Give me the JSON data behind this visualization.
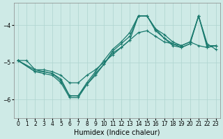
{
  "xlabel": "Humidex (Indice chaleur)",
  "xlim": [
    -0.5,
    23.5
  ],
  "ylim": [
    -6.5,
    -3.4
  ],
  "yticks": [
    -6,
    -5,
    -4
  ],
  "xticks": [
    0,
    1,
    2,
    3,
    4,
    5,
    6,
    7,
    8,
    9,
    10,
    11,
    12,
    13,
    14,
    15,
    16,
    17,
    18,
    19,
    20,
    21,
    22,
    23
  ],
  "bg_color": "#ceeae6",
  "line_color": "#1a7a6e",
  "grid_color": "#aed4ce",
  "series": [
    {
      "x": [
        0,
        1,
        2,
        3,
        4,
        5,
        6,
        7,
        8,
        9,
        10,
        11,
        12,
        13,
        14,
        15,
        16,
        17,
        18,
        19,
        20,
        21,
        22,
        23
      ],
      "y": [
        -4.95,
        -4.95,
        -5.2,
        -5.2,
        -5.25,
        -5.35,
        -5.55,
        -5.55,
        -5.35,
        -5.2,
        -5.0,
        -4.8,
        -4.6,
        -4.4,
        -4.2,
        -4.15,
        -4.3,
        -4.45,
        -4.5,
        -4.55,
        -4.45,
        -4.55,
        -4.6,
        -4.55
      ]
    },
    {
      "x": [
        0,
        2,
        3,
        4,
        5,
        6,
        7,
        8,
        9,
        10,
        11,
        12,
        13,
        14,
        15,
        16,
        17,
        18,
        19,
        20,
        21,
        22,
        23
      ],
      "y": [
        -4.95,
        -5.2,
        -5.25,
        -5.3,
        -5.45,
        -5.9,
        -5.9,
        -5.55,
        -5.25,
        -4.95,
        -4.65,
        -4.45,
        -4.2,
        -3.75,
        -3.75,
        -4.1,
        -4.25,
        -4.45,
        -4.55,
        -4.45,
        -3.75,
        -4.5,
        -4.65
      ]
    },
    {
      "x": [
        0,
        2,
        3,
        4,
        5,
        6,
        7,
        9,
        10,
        11,
        12,
        13,
        14,
        15,
        16,
        17,
        18,
        19,
        20,
        21,
        22,
        23
      ],
      "y": [
        -4.95,
        -5.25,
        -5.25,
        -5.3,
        -5.5,
        -5.9,
        -5.9,
        -5.3,
        -5.05,
        -4.7,
        -4.5,
        -4.3,
        -3.75,
        -3.75,
        -4.1,
        -4.35,
        -4.55,
        -4.6,
        -4.5,
        -3.75,
        -4.55,
        -4.55
      ]
    },
    {
      "x": [
        0,
        2,
        3,
        4,
        5,
        6,
        7,
        8,
        9,
        10,
        11,
        12,
        13,
        14,
        15,
        16,
        17,
        18,
        19,
        20,
        21,
        22,
        23
      ],
      "y": [
        -4.95,
        -5.25,
        -5.3,
        -5.35,
        -5.55,
        -5.95,
        -5.95,
        -5.6,
        -5.35,
        -5.05,
        -4.75,
        -4.6,
        -4.4,
        -3.75,
        -3.75,
        -4.15,
        -4.35,
        -4.5,
        -4.6,
        -4.5,
        -3.75,
        -4.6,
        -4.55
      ]
    }
  ],
  "marker": "+",
  "markersize": 3.5,
  "linewidth": 0.9,
  "tick_fontsize": 5.5,
  "label_fontsize": 7
}
